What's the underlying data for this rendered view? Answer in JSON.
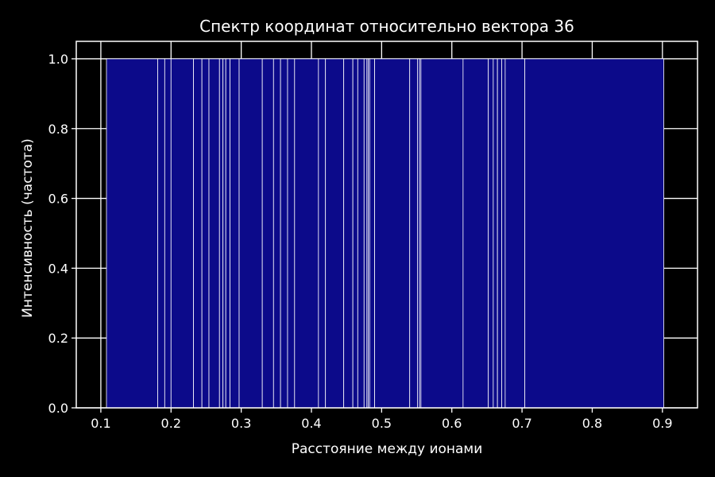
{
  "chart_data": {
    "type": "bar",
    "title": "Спектр координат относительно вектора 36",
    "xlabel": "Расстояние между ионами",
    "ylabel": "Интенсивность (частота)",
    "xlim": [
      0.065,
      0.95
    ],
    "ylim": [
      0,
      1.05
    ],
    "xticks": [
      "0.1",
      "0.2",
      "0.3",
      "0.4",
      "0.5",
      "0.6",
      "0.7",
      "0.8",
      "0.9"
    ],
    "yticks": [
      "0.0",
      "0.2",
      "0.4",
      "0.6",
      "0.8",
      "1.0"
    ],
    "grid": true,
    "bar_edges": [
      0.108,
      0.181,
      0.191,
      0.2,
      0.232,
      0.244,
      0.254,
      0.269,
      0.274,
      0.278,
      0.284,
      0.297,
      0.33,
      0.346,
      0.356,
      0.366,
      0.376,
      0.41,
      0.42,
      0.446,
      0.459,
      0.466,
      0.475,
      0.479,
      0.481,
      0.483,
      0.49,
      0.54,
      0.551,
      0.554,
      0.556,
      0.616,
      0.652,
      0.659,
      0.665,
      0.671,
      0.676,
      0.704,
      0.902
    ],
    "values": [
      1,
      1,
      1,
      1,
      1,
      1,
      1,
      1,
      1,
      1,
      1,
      1,
      1,
      1,
      1,
      1,
      1,
      1,
      1,
      1,
      1,
      1,
      1,
      1,
      1,
      1,
      1,
      1,
      1,
      1,
      1,
      1,
      1,
      1,
      1,
      1,
      1,
      1
    ],
    "colors": {
      "background": "#000000",
      "bar_fill": "#0c0a8a",
      "bar_edge": "#ffffff",
      "grid": "#ffffff",
      "text": "#ffffff"
    }
  }
}
